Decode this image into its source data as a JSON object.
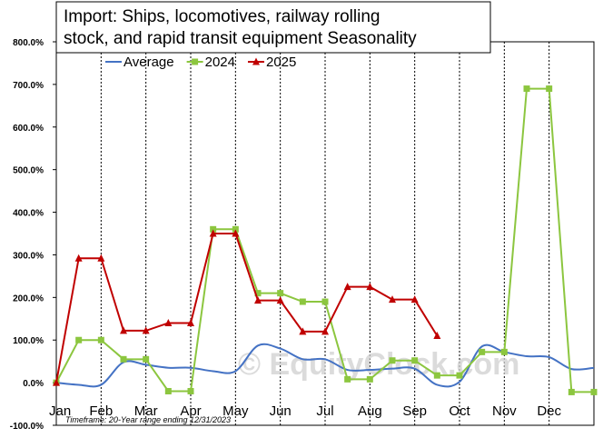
{
  "chart_data": {
    "type": "line",
    "title_lines": [
      "Import: Ships, locomotives, railway rolling",
      "stock, and rapid transit equipment Seasonality"
    ],
    "categories": [
      "Jan",
      "Feb",
      "Mar",
      "Apr",
      "May",
      "Jun",
      "Jul",
      "Aug",
      "Sep",
      "Oct",
      "Nov",
      "Dec"
    ],
    "ylim": [
      -100,
      800
    ],
    "yticks": [
      -100,
      0,
      100,
      200,
      300,
      400,
      500,
      600,
      700,
      800
    ],
    "ytick_labels": [
      "-100.0%",
      "0.0%",
      "100.0%",
      "200.0%",
      "300.0%",
      "400.0%",
      "500.0%",
      "600.0%",
      "700.0%",
      "800.0%"
    ],
    "grid": "vertical dashed lines at month boundaries",
    "legend_position": "top-left",
    "series": [
      {
        "name": "Average",
        "color": "#4472c4",
        "marker": "none",
        "smooth": true,
        "points": [
          [
            0,
            0
          ],
          [
            0.5,
            -5
          ],
          [
            1,
            -5
          ],
          [
            1.5,
            48
          ],
          [
            2,
            42
          ],
          [
            2.5,
            35
          ],
          [
            3,
            35
          ],
          [
            3.5,
            27
          ],
          [
            4,
            27
          ],
          [
            4.5,
            87
          ],
          [
            5,
            80
          ],
          [
            5.5,
            55
          ],
          [
            6,
            55
          ],
          [
            6.5,
            30
          ],
          [
            7,
            30
          ],
          [
            7.5,
            33
          ],
          [
            8,
            33
          ],
          [
            8.5,
            -5
          ],
          [
            9,
            2
          ],
          [
            9.5,
            85
          ],
          [
            10,
            72
          ],
          [
            10.5,
            62
          ],
          [
            11,
            60
          ],
          [
            11.5,
            32
          ],
          [
            12,
            35
          ]
        ]
      },
      {
        "name": "2024",
        "color": "#8cc63f",
        "marker": "square",
        "smooth": false,
        "points": [
          [
            0,
            0
          ],
          [
            0.5,
            100
          ],
          [
            1,
            100
          ],
          [
            1.5,
            55
          ],
          [
            2,
            55
          ],
          [
            2.5,
            -20
          ],
          [
            3,
            -20
          ],
          [
            3.5,
            360
          ],
          [
            4,
            360
          ],
          [
            4.5,
            210
          ],
          [
            5,
            210
          ],
          [
            5.5,
            190
          ],
          [
            6,
            190
          ],
          [
            6.5,
            8
          ],
          [
            7,
            8
          ],
          [
            7.5,
            52
          ],
          [
            8,
            52
          ],
          [
            8.5,
            17
          ],
          [
            9,
            17
          ],
          [
            9.5,
            72
          ],
          [
            10,
            72
          ],
          [
            10.5,
            690
          ],
          [
            11,
            690
          ],
          [
            11.5,
            -22
          ],
          [
            12,
            -22
          ]
        ]
      },
      {
        "name": "2025",
        "color": "#c00000",
        "marker": "triangle",
        "smooth": false,
        "points": [
          [
            0,
            0
          ],
          [
            0.5,
            292
          ],
          [
            1,
            292
          ],
          [
            1.5,
            122
          ],
          [
            2,
            122
          ],
          [
            2.5,
            140
          ],
          [
            3,
            140
          ],
          [
            3.5,
            350
          ],
          [
            4,
            350
          ],
          [
            4.5,
            193
          ],
          [
            5,
            193
          ],
          [
            5.5,
            120
          ],
          [
            6,
            120
          ],
          [
            6.5,
            225
          ],
          [
            7,
            225
          ],
          [
            7.5,
            195
          ],
          [
            8,
            195
          ],
          [
            8.5,
            110
          ]
        ]
      }
    ],
    "footnote": "Timeframe: 20-Year range ending 12/31/2023",
    "watermark": "© EquityClock.com"
  }
}
